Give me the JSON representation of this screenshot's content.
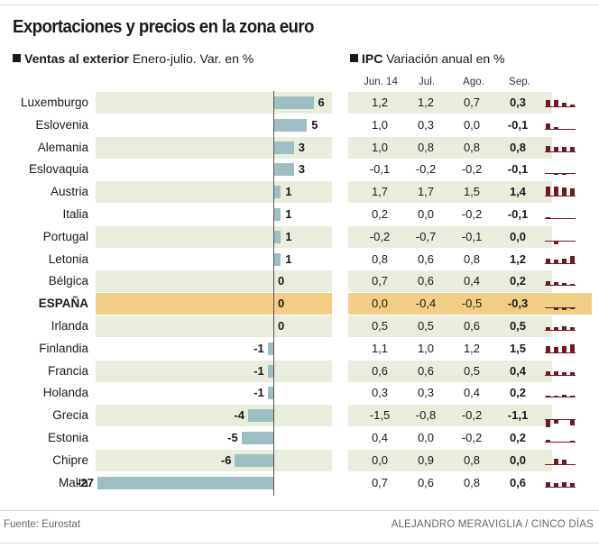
{
  "title": "Exportaciones y precios en la zona euro",
  "exports_header": {
    "bold": "Ventas al exterior",
    "rest": " Enero-julio. Var. en %"
  },
  "ipc_header": {
    "bold": "IPC",
    "rest": " Variación anual en %"
  },
  "ipc_columns": [
    "Jun. 14",
    "Jul.",
    "Ago.",
    "Sep."
  ],
  "highlight_country": "ESPAÑA",
  "colors": {
    "bar": "#9dbfc3",
    "spark": "#6d1a24",
    "shade": "#e9eddd",
    "highlight": "#f0cf84"
  },
  "chart_data": {
    "type": "bar",
    "orientation": "horizontal",
    "title": "Exportaciones y precios en la zona euro",
    "categories": [
      "Luxemburgo",
      "Eslovenia",
      "Alemania",
      "Eslovaquia",
      "Austria",
      "Italia",
      "Portugal",
      "Letonia",
      "Bélgica",
      "ESPAÑA",
      "Irlanda",
      "Finlandia",
      "Francia",
      "Holanda",
      "Grecia",
      "Estonia",
      "Chipre",
      "Malta"
    ],
    "series": [
      {
        "name": "Ventas al exterior, Enero-julio. Var. en %",
        "values": [
          6,
          5,
          3,
          3,
          1,
          1,
          1,
          1,
          0,
          0,
          0,
          -1,
          -1,
          -1,
          -4,
          -5,
          -6,
          -27
        ]
      },
      {
        "name": "IPC Jun. 14",
        "values": [
          1.2,
          1.0,
          1.0,
          -0.1,
          1.7,
          0.2,
          -0.2,
          0.8,
          0.7,
          0.0,
          0.5,
          1.1,
          0.6,
          0.3,
          -1.5,
          0.4,
          0.0,
          0.7
        ]
      },
      {
        "name": "IPC Jul.",
        "values": [
          1.2,
          0.3,
          0.8,
          -0.2,
          1.7,
          0.0,
          -0.7,
          0.6,
          0.6,
          -0.4,
          0.5,
          1.0,
          0.6,
          0.3,
          -0.8,
          0.0,
          0.9,
          0.6
        ]
      },
      {
        "name": "IPC Ago.",
        "values": [
          0.7,
          0.0,
          0.8,
          -0.2,
          1.5,
          -0.2,
          -0.1,
          0.8,
          0.4,
          -0.5,
          0.6,
          1.2,
          0.5,
          0.4,
          -0.2,
          -0.2,
          0.8,
          0.8
        ]
      },
      {
        "name": "IPC Sep.",
        "values": [
          0.3,
          -0.1,
          0.8,
          -0.1,
          1.4,
          -0.1,
          0.0,
          1.2,
          0.2,
          -0.3,
          0.5,
          1.5,
          0.4,
          0.2,
          -1.1,
          0.2,
          0.0,
          0.6
        ]
      }
    ],
    "value_labels": [
      "6",
      "5",
      "3",
      "3",
      "1",
      "1",
      "1",
      "1",
      "0",
      "0",
      "0",
      "-1",
      "-1",
      "-1",
      "-4",
      "-5",
      "-6",
      "-27"
    ],
    "ipc_labels": [
      [
        "1,2",
        "1,2",
        "0,7",
        "0,3"
      ],
      [
        "1,0",
        "0,3",
        "0,0",
        "-0,1"
      ],
      [
        "1,0",
        "0,8",
        "0,8",
        "0,8"
      ],
      [
        "-0,1",
        "-0,2",
        "-0,2",
        "-0,1"
      ],
      [
        "1,7",
        "1,7",
        "1,5",
        "1,4"
      ],
      [
        "0,2",
        "0,0",
        "-0,2",
        "-0,1"
      ],
      [
        "-0,2",
        "-0,7",
        "-0,1",
        "0,0"
      ],
      [
        "0,8",
        "0,6",
        "0,8",
        "1,2"
      ],
      [
        "0,7",
        "0,6",
        "0,4",
        "0,2"
      ],
      [
        "0,0",
        "-0,4",
        "-0,5",
        "-0,3"
      ],
      [
        "0,5",
        "0,5",
        "0,6",
        "0,5"
      ],
      [
        "1,1",
        "1,0",
        "1,2",
        "1,5"
      ],
      [
        "0,6",
        "0,6",
        "0,5",
        "0,4"
      ],
      [
        "0,3",
        "0,3",
        "0,4",
        "0,2"
      ],
      [
        "-1,5",
        "-0,8",
        "-0,2",
        "-1,1"
      ],
      [
        "0,4",
        "0,0",
        "-0,2",
        "0,2"
      ],
      [
        "0,0",
        "0,9",
        "0,8",
        "0,0"
      ],
      [
        "0,7",
        "0,6",
        "0,8",
        "0,6"
      ]
    ],
    "xlim": [
      -27,
      6
    ]
  },
  "footer": {
    "source": "Fuente: Eurostat",
    "credit": "ALEJANDRO MERAVIGLIA / CINCO DÍAS"
  }
}
